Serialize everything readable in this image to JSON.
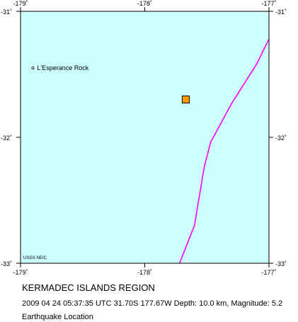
{
  "map": {
    "lon_ticks": [
      "-179˚",
      "-178˚",
      "-177˚"
    ],
    "lat_ticks": [
      "-31˚",
      "-32˚",
      "-33˚"
    ],
    "lon_range": [
      -179,
      -177
    ],
    "lat_range": [
      -33,
      -31
    ],
    "ocean_color": "#ccffff",
    "frame_color": "#000000",
    "place": {
      "name": "L'Esperance Rock",
      "lon": -178.9,
      "lat": -31.45
    },
    "epicenter": {
      "lon": -177.67,
      "lat": -31.7,
      "fill": "#ff9900",
      "stroke": "#000000"
    },
    "plate_boundary": {
      "color": "#ff00ff",
      "points": [
        [
          -177.0,
          -31.22
        ],
        [
          -177.1,
          -31.42
        ],
        [
          -177.3,
          -31.73
        ],
        [
          -177.47,
          -32.04
        ],
        [
          -177.52,
          -32.23
        ],
        [
          -177.6,
          -32.7
        ],
        [
          -177.72,
          -33.0
        ]
      ]
    },
    "credit": "USGS NEIC"
  },
  "caption": {
    "region": "KERMADEC ISLANDS REGION",
    "event": "2009 04 24 05:37:35 UTC 31.70S 177.67W Depth: 10.0 km, Magnitude: 5.2",
    "map_type": "Earthquake Location"
  }
}
